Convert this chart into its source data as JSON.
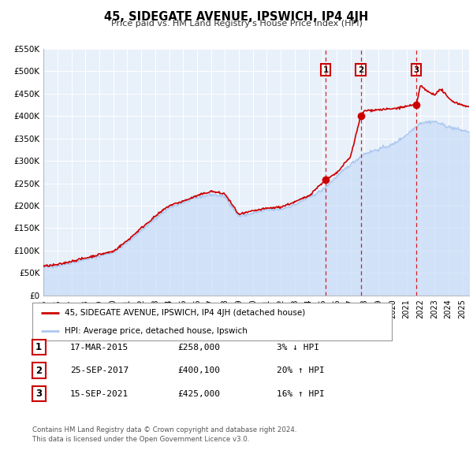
{
  "title": "45, SIDEGATE AVENUE, IPSWICH, IP4 4JH",
  "subtitle": "Price paid vs. HM Land Registry's House Price Index (HPI)",
  "background_color": "#ffffff",
  "plot_bg_color": "#e8f0fa",
  "grid_color": "#ffffff",
  "ylim": [
    0,
    550000
  ],
  "yticks": [
    0,
    50000,
    100000,
    150000,
    200000,
    250000,
    300000,
    350000,
    400000,
    450000,
    500000,
    550000
  ],
  "ytick_labels": [
    "£0",
    "£50K",
    "£100K",
    "£150K",
    "£200K",
    "£250K",
    "£300K",
    "£350K",
    "£400K",
    "£450K",
    "£500K",
    "£550K"
  ],
  "xlim_start": 1995,
  "xlim_end": 2025.5,
  "xticks": [
    1995,
    1996,
    1997,
    1998,
    1999,
    2000,
    2001,
    2002,
    2003,
    2004,
    2005,
    2006,
    2007,
    2008,
    2009,
    2010,
    2011,
    2012,
    2013,
    2014,
    2015,
    2016,
    2017,
    2018,
    2019,
    2020,
    2021,
    2022,
    2023,
    2024,
    2025
  ],
  "sale_color": "#cc0000",
  "hpi_color": "#aac8f0",
  "hpi_fill_color": "#c8dcf8",
  "vline_color": "#cc0000",
  "marker_color": "#cc0000",
  "sales": [
    {
      "year": 2015.21,
      "price": 258000,
      "label": "1"
    },
    {
      "year": 2017.73,
      "price": 400100,
      "label": "2"
    },
    {
      "year": 2021.71,
      "price": 425000,
      "label": "3"
    }
  ],
  "legend_sale_label": "45, SIDEGATE AVENUE, IPSWICH, IP4 4JH (detached house)",
  "legend_hpi_label": "HPI: Average price, detached house, Ipswich",
  "table_rows": [
    {
      "num": "1",
      "date": "17-MAR-2015",
      "price": "£258,000",
      "change": "3% ↓ HPI"
    },
    {
      "num": "2",
      "date": "25-SEP-2017",
      "price": "£400,100",
      "change": "20% ↑ HPI"
    },
    {
      "num": "3",
      "date": "15-SEP-2021",
      "price": "£425,000",
      "change": "16% ↑ HPI"
    }
  ],
  "footnote1": "Contains HM Land Registry data © Crown copyright and database right 2024.",
  "footnote2": "This data is licensed under the Open Government Licence v3.0."
}
